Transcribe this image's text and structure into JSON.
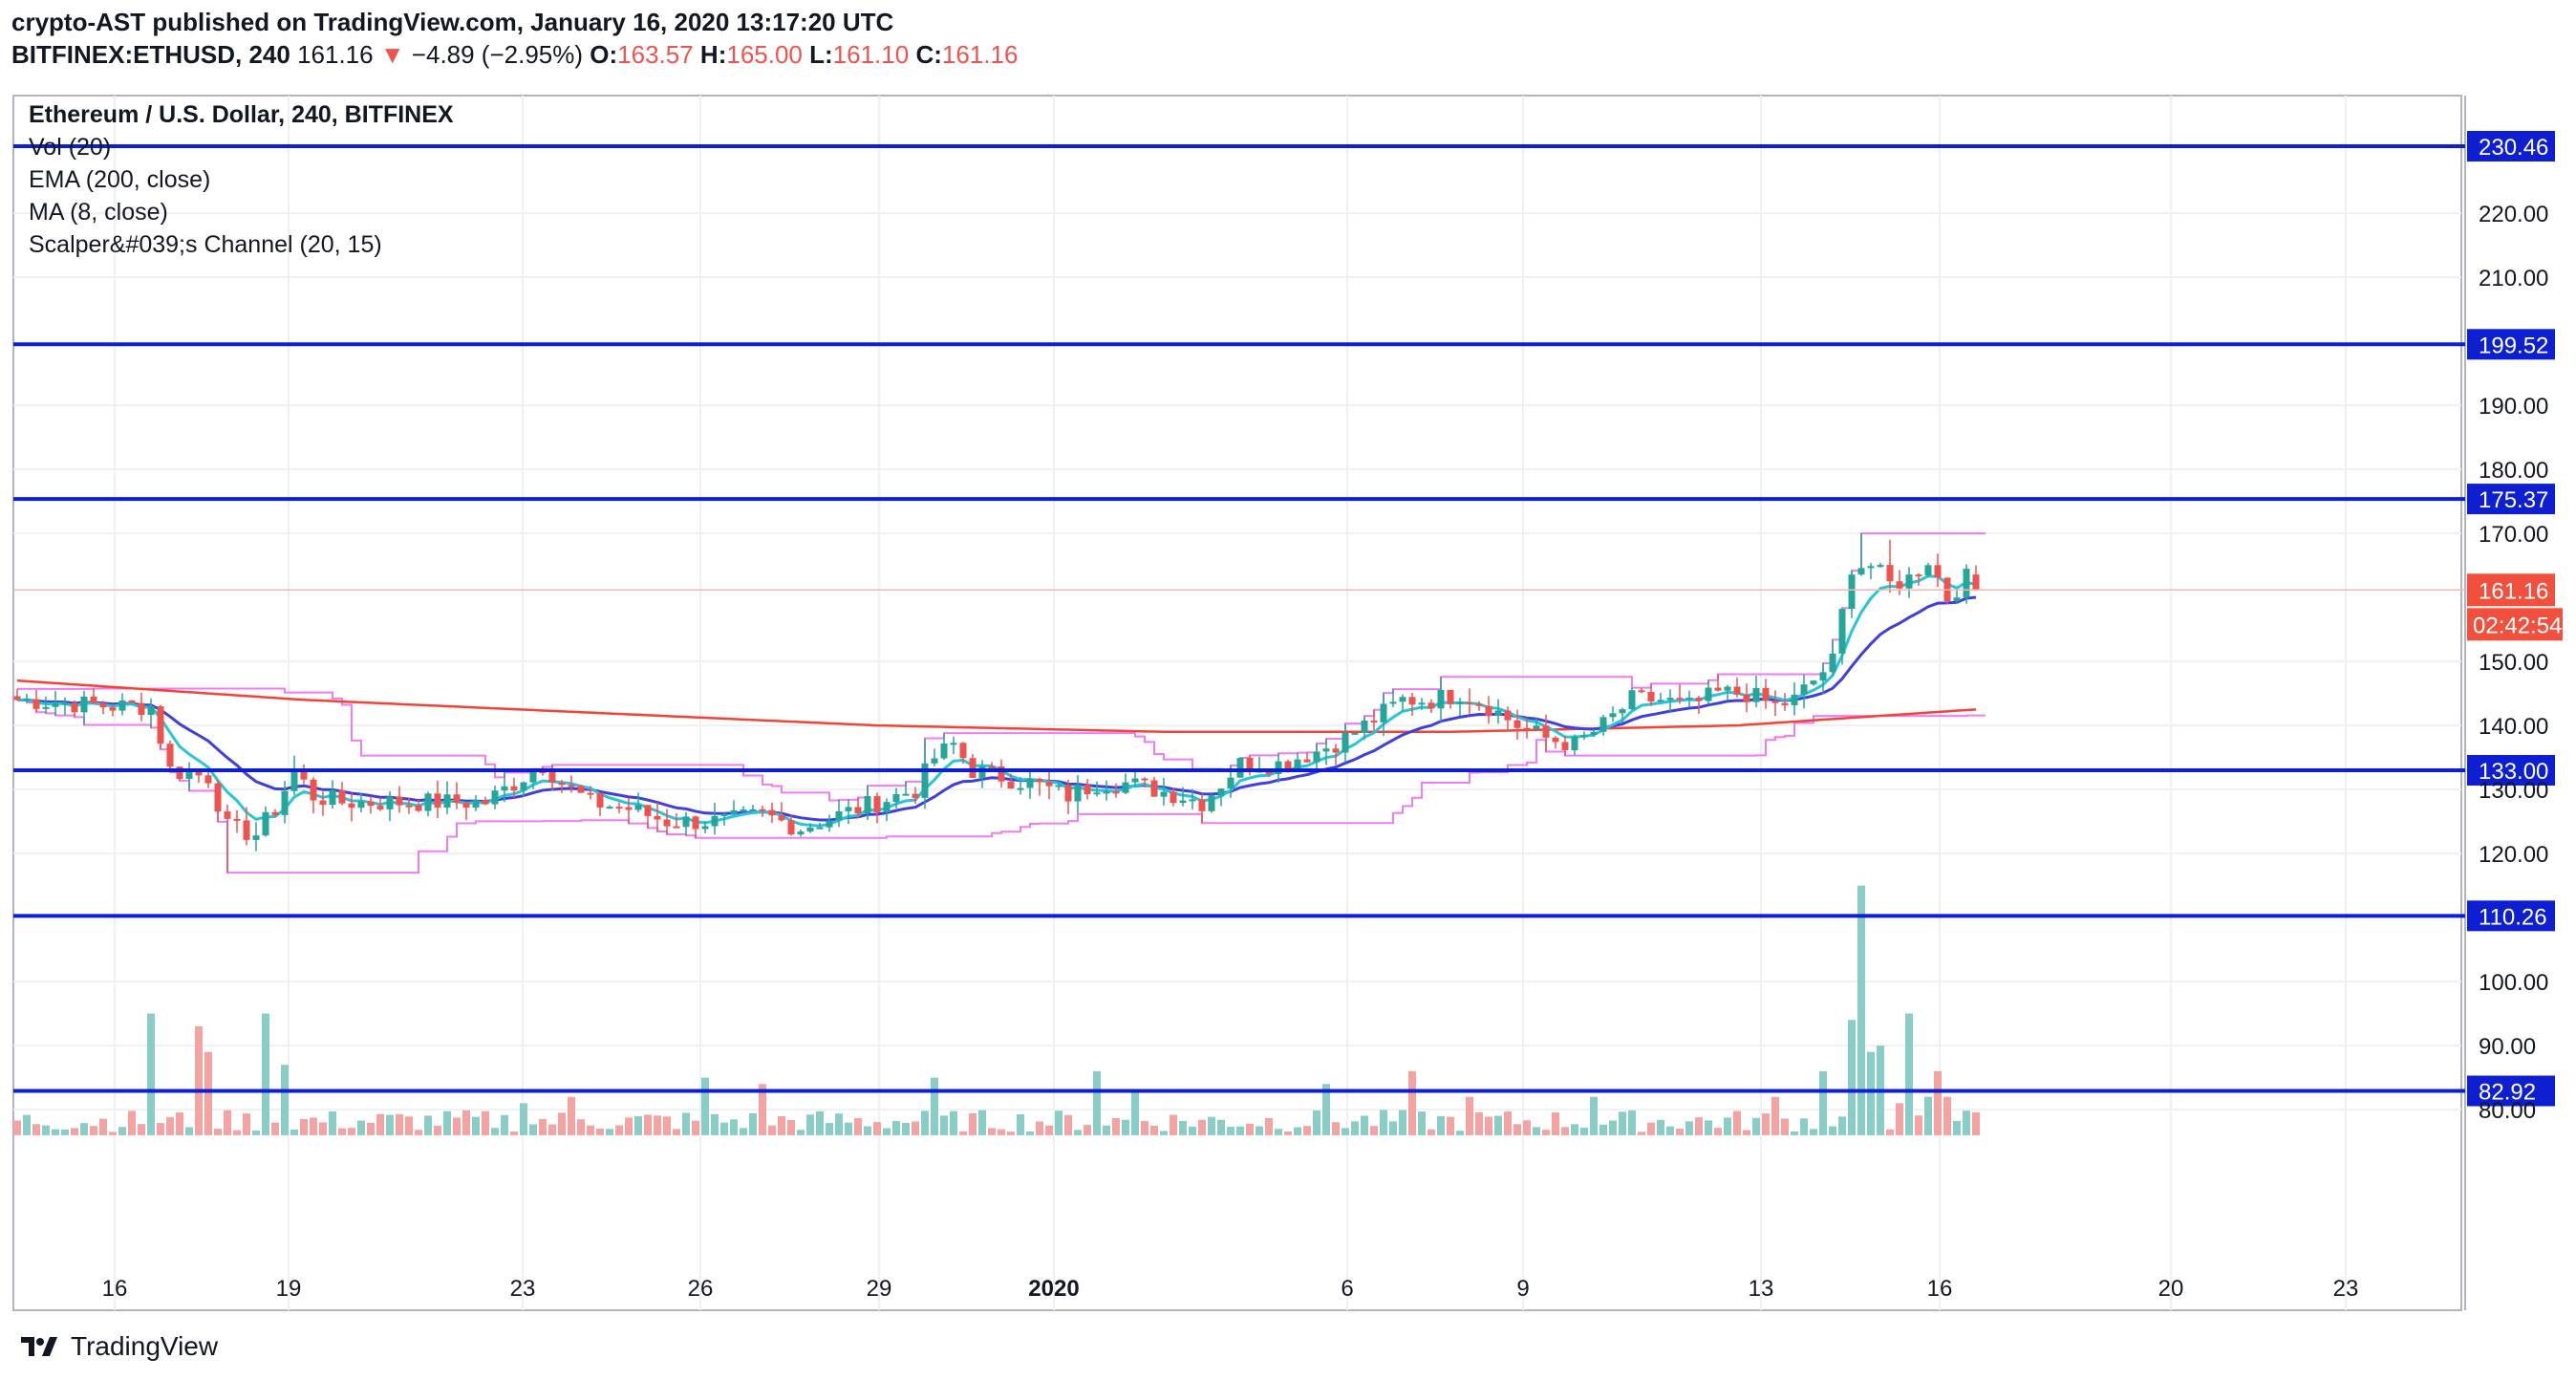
{
  "header": {
    "line1": "crypto-AST published on TradingView.com, January 16, 2020 13:17:20 UTC",
    "symbol": "BITFINEX:ETHUSD, 240",
    "price": "161.16",
    "change": "−4.89 (−2.95%)",
    "o_label": "O:",
    "o_value": "163.57",
    "h_label": "H:",
    "h_value": "165.00",
    "l_label": "L:",
    "l_value": "161.10",
    "c_label": "C:",
    "c_value": "161.16"
  },
  "legend": {
    "title": "Ethereum / U.S. Dollar, 240, BITFINEX",
    "indicators": [
      "Vol (20)",
      "EMA (200, close)",
      "MA (8, close)",
      "Scalper&#039;s Channel (20, 15)"
    ]
  },
  "footer": {
    "brand": "TradingView"
  },
  "colors": {
    "up": "#26a69a",
    "down": "#ef5350",
    "up_vol": "#89cdc6",
    "down_vol": "#f4a3a3",
    "hline": "#0d1fd1",
    "ema": "#f44336",
    "ma": "#26c6da",
    "ma2": "#3f3fe0",
    "channel": "#f07cf5",
    "current": "#f0503c"
  },
  "chart_data": {
    "type": "candlestick",
    "x_ticks": [
      "16",
      "19",
      "23",
      "26",
      "29",
      "2020",
      "6",
      "9",
      "13",
      "16",
      "20",
      "23"
    ],
    "y_ticks": [
      "80.00",
      "90.00",
      "100.00",
      "120.00",
      "130.00",
      "140.00",
      "150.00",
      "170.00",
      "180.00",
      "190.00",
      "210.00",
      "220.00"
    ],
    "ylim": [
      76,
      240
    ],
    "horizontal_levels": [
      {
        "value": 230.46,
        "label": "230.46"
      },
      {
        "value": 199.52,
        "label": "199.52"
      },
      {
        "value": 175.37,
        "label": "175.37"
      },
      {
        "value": 133.0,
        "label": "133.00"
      },
      {
        "value": 110.26,
        "label": "110.26"
      },
      {
        "value": 82.92,
        "label": "82.92"
      }
    ],
    "current_price": {
      "value": 161.16,
      "label": "161.16",
      "countdown": "02:42:54"
    },
    "price_anchors": [
      [
        0,
        144
      ],
      [
        10,
        143
      ],
      [
        14,
        143
      ],
      [
        16,
        133
      ],
      [
        20,
        132
      ],
      [
        22,
        124
      ],
      [
        25,
        123
      ],
      [
        27,
        127
      ],
      [
        29,
        133
      ],
      [
        31,
        129
      ],
      [
        34,
        128
      ],
      [
        40,
        128
      ],
      [
        46,
        128
      ],
      [
        49,
        128
      ],
      [
        52,
        131
      ],
      [
        55,
        134
      ],
      [
        57,
        131
      ],
      [
        60,
        128
      ],
      [
        64,
        127
      ],
      [
        68,
        125
      ],
      [
        74,
        125
      ],
      [
        78,
        126
      ],
      [
        82,
        124
      ],
      [
        86,
        126
      ],
      [
        90,
        128
      ],
      [
        94,
        130
      ],
      [
        96,
        135
      ],
      [
        98,
        137
      ],
      [
        100,
        133
      ],
      [
        106,
        131
      ],
      [
        110,
        129
      ],
      [
        113,
        131
      ],
      [
        116,
        131
      ],
      [
        119,
        130
      ],
      [
        122,
        129
      ],
      [
        124,
        128
      ],
      [
        126,
        131
      ],
      [
        128,
        134
      ],
      [
        132,
        134
      ],
      [
        136,
        136
      ],
      [
        139,
        138
      ],
      [
        142,
        141
      ],
      [
        145,
        144
      ],
      [
        148,
        144
      ],
      [
        151,
        145
      ],
      [
        154,
        143
      ],
      [
        157,
        140
      ],
      [
        160,
        138
      ],
      [
        163,
        137
      ],
      [
        166,
        140
      ],
      [
        169,
        144
      ],
      [
        172,
        144
      ],
      [
        175,
        143
      ],
      [
        178,
        145
      ],
      [
        181,
        145
      ],
      [
        184,
        143
      ],
      [
        186,
        144
      ],
      [
        188,
        147
      ],
      [
        190,
        150
      ],
      [
        192,
        165
      ],
      [
        194,
        165
      ],
      [
        196,
        162
      ],
      [
        198,
        163
      ],
      [
        200,
        166
      ],
      [
        202,
        160
      ],
      [
        204,
        163
      ],
      [
        205,
        161.16
      ]
    ],
    "volume_spikes": [
      [
        14,
        95
      ],
      [
        19,
        93
      ],
      [
        20,
        89
      ],
      [
        26,
        95
      ],
      [
        28,
        87
      ],
      [
        53,
        81
      ],
      [
        58,
        82
      ],
      [
        72,
        85
      ],
      [
        78,
        84
      ],
      [
        96,
        85
      ],
      [
        113,
        86
      ],
      [
        117,
        83
      ],
      [
        137,
        84
      ],
      [
        146,
        86
      ],
      [
        152,
        82
      ],
      [
        165,
        82
      ],
      [
        184,
        82
      ],
      [
        189,
        86
      ],
      [
        192,
        94
      ],
      [
        193,
        115
      ],
      [
        194,
        89
      ],
      [
        195,
        90
      ],
      [
        197,
        81
      ],
      [
        198,
        95
      ],
      [
        200,
        82
      ],
      [
        201,
        86
      ],
      [
        202,
        82
      ]
    ],
    "ema200": [
      [
        0,
        147
      ],
      [
        30,
        144
      ],
      [
        60,
        142
      ],
      [
        90,
        140
      ],
      [
        120,
        139
      ],
      [
        150,
        139
      ],
      [
        180,
        140
      ],
      [
        205,
        142.5
      ]
    ],
    "ma_fast_smoothing": 0.3,
    "ma_slow_smoothing": 0.12
  }
}
